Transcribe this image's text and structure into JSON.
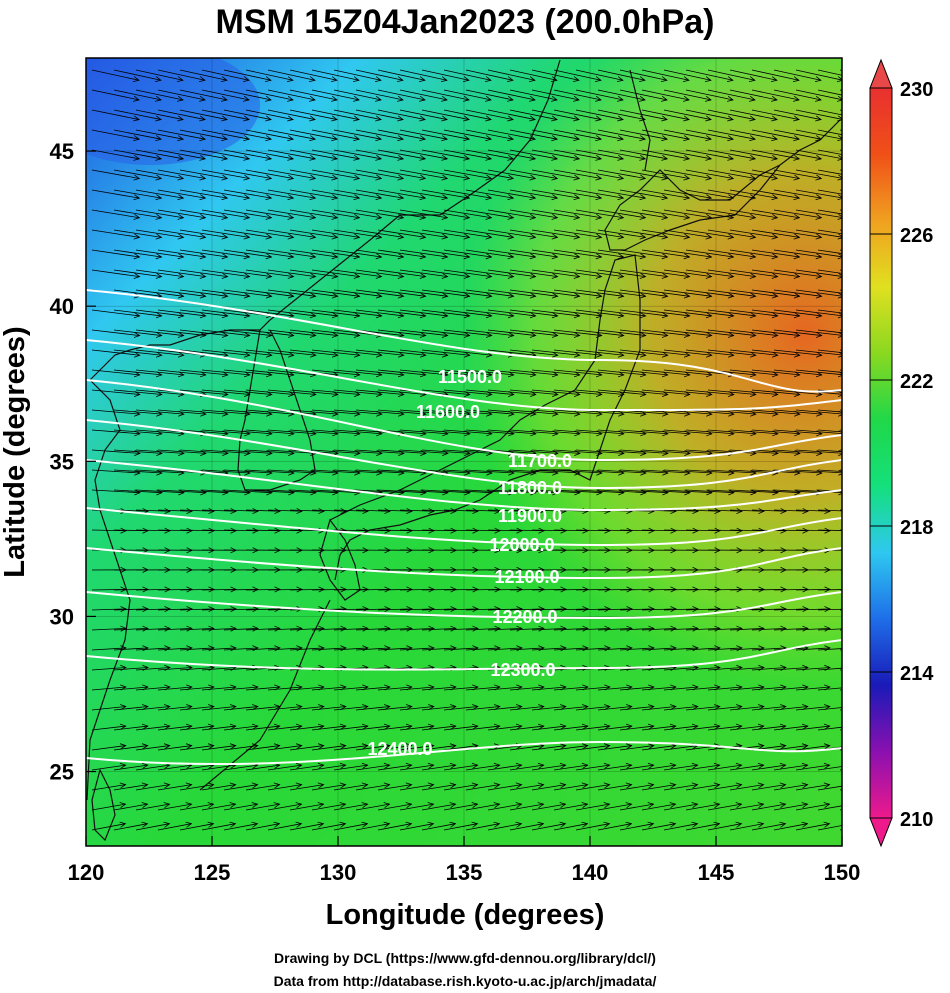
{
  "title": "MSM 15Z04Jan2023 (200.0hPa)",
  "xlabel": "Longitude (degrees)",
  "ylabel": "Latitude  (degrees)",
  "x_ticks": [
    "120",
    "125",
    "130",
    "135",
    "140",
    "145",
    "150"
  ],
  "y_ticks": [
    "25",
    "30",
    "35",
    "40",
    "45"
  ],
  "colorbar": {
    "min": 210,
    "max": 230,
    "labels": [
      "230",
      "226",
      "222",
      "218",
      "214",
      "210"
    ],
    "colors": [
      "#ee1a8c",
      "#8a10b0",
      "#1a1ab8",
      "#1e6ee8",
      "#2ec8f0",
      "#14e07c",
      "#20d848",
      "#8ad820",
      "#e0e020",
      "#f0a020",
      "#f05018",
      "#e83030"
    ]
  },
  "contours": [
    {
      "label": "11500.0"
    },
    {
      "label": "11600.0"
    },
    {
      "label": "11700.0"
    },
    {
      "label": "11800.0"
    },
    {
      "label": "11900.0"
    },
    {
      "label": "12000.0"
    },
    {
      "label": "12100.0"
    },
    {
      "label": "12200.0"
    },
    {
      "label": "12300.0"
    },
    {
      "label": "12400.0"
    }
  ],
  "credits": {
    "line1": "Drawing by DCL (https://www.gfd-dennou.org/library/dcl/)",
    "line2": "Data from http://database.rish.kyoto-u.ac.jp/arch/jmadata/"
  }
}
